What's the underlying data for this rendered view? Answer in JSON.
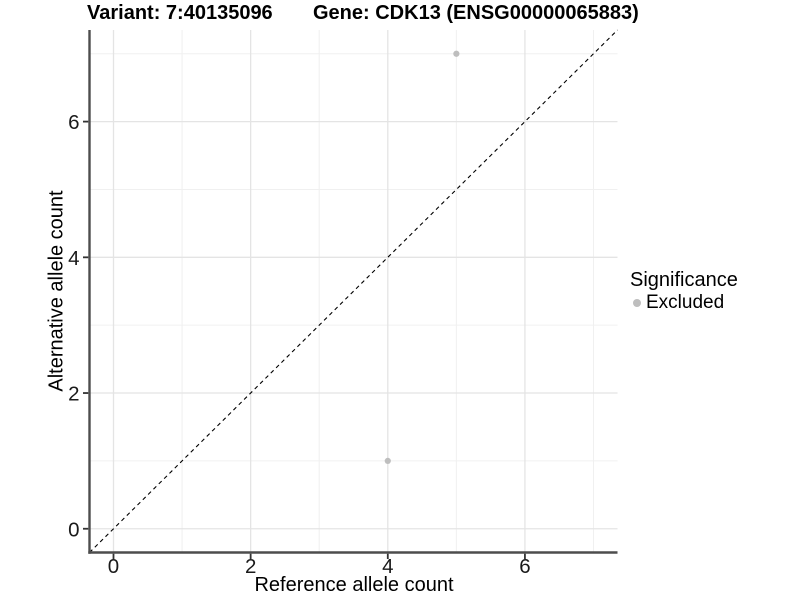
{
  "header": {
    "variant_title": "Variant: 7:40135096",
    "gene_title": "Gene: CDK13 (ENSG00000065883)"
  },
  "chart_data": {
    "type": "scatter",
    "xlabel": "Reference allele count",
    "ylabel": "Alternative allele count",
    "xlim": [
      -0.35,
      7.35
    ],
    "ylim": [
      -0.35,
      7.35
    ],
    "xticks": [
      0,
      2,
      4,
      6
    ],
    "yticks": [
      0,
      2,
      4,
      6
    ],
    "xminor": [
      1,
      3,
      5,
      7
    ],
    "yminor": [
      1,
      3,
      5,
      7
    ],
    "grid": "major-and-minor",
    "series": [
      {
        "name": "Excluded",
        "color": "#bebebe",
        "points": [
          [
            4,
            1
          ],
          [
            5,
            7
          ]
        ]
      }
    ],
    "identity_line": {
      "slope": 1,
      "intercept": 0,
      "style": "dashed",
      "color": "#000000"
    },
    "legend": {
      "title": "Significance",
      "position": "right",
      "entries": [
        {
          "label": "Excluded",
          "color": "#bebebe",
          "marker": "circle"
        }
      ]
    },
    "style": {
      "major_grid": "#e4e4e4",
      "minor_grid": "#f0f0f0",
      "axis_line": "#4d4d4d",
      "tick_mark": "#333333",
      "tick_text": "#1a1a1a",
      "background": "#ffffff"
    }
  }
}
